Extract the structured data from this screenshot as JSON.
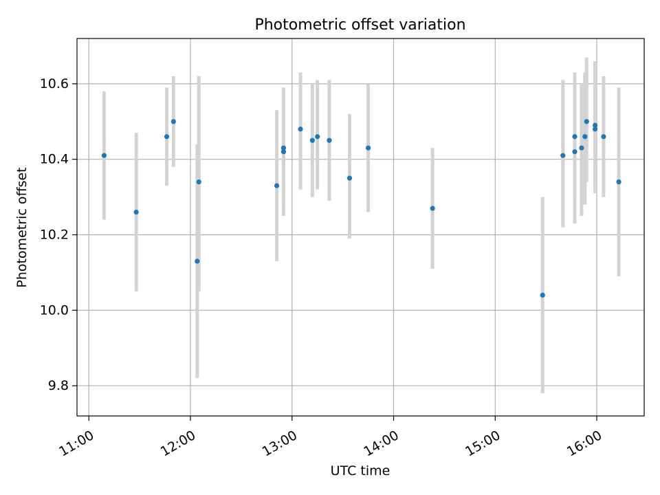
{
  "chart_data": {
    "type": "scatter",
    "title": "Photometric offset variation",
    "xlabel": "UTC time",
    "ylabel": "Photometric offset",
    "x_tick_labels": [
      "11:00",
      "12:00",
      "13:00",
      "14:00",
      "15:00",
      "16:00"
    ],
    "y_tick_labels": [
      "9.8",
      "10.0",
      "10.2",
      "10.4",
      "10.6"
    ],
    "xlim": [
      "10:53",
      "16:28"
    ],
    "ylim": [
      9.72,
      10.72
    ],
    "grid": true,
    "legend": "none",
    "colors": {
      "point": "#1f77b4",
      "errorbar": "#d3d3d3",
      "grid": "#b0b0b0"
    },
    "points": [
      {
        "x": "11:09",
        "y": 10.41,
        "err_low": 10.24,
        "err_high": 10.58
      },
      {
        "x": "11:28",
        "y": 10.26,
        "err_low": 10.05,
        "err_high": 10.47
      },
      {
        "x": "11:46",
        "y": 10.46,
        "err_low": 10.33,
        "err_high": 10.59
      },
      {
        "x": "11:50",
        "y": 10.5,
        "err_low": 10.38,
        "err_high": 10.62
      },
      {
        "x": "12:04",
        "y": 10.13,
        "err_low": 9.82,
        "err_high": 10.44
      },
      {
        "x": "12:05",
        "y": 10.34,
        "err_low": 10.05,
        "err_high": 10.62
      },
      {
        "x": "12:51",
        "y": 10.33,
        "err_low": 10.13,
        "err_high": 10.53
      },
      {
        "x": "12:55",
        "y": 10.42,
        "err_low": 10.25,
        "err_high": 10.59
      },
      {
        "x": "12:55",
        "y": 10.43,
        "err_low": 10.28,
        "err_high": 10.59
      },
      {
        "x": "13:05",
        "y": 10.48,
        "err_low": 10.32,
        "err_high": 10.63
      },
      {
        "x": "13:12",
        "y": 10.45,
        "err_low": 10.3,
        "err_high": 10.6
      },
      {
        "x": "13:15",
        "y": 10.46,
        "err_low": 10.32,
        "err_high": 10.61
      },
      {
        "x": "13:22",
        "y": 10.45,
        "err_low": 10.29,
        "err_high": 10.61
      },
      {
        "x": "13:34",
        "y": 10.35,
        "err_low": 10.19,
        "err_high": 10.52
      },
      {
        "x": "13:45",
        "y": 10.43,
        "err_low": 10.26,
        "err_high": 10.6
      },
      {
        "x": "14:23",
        "y": 10.27,
        "err_low": 10.11,
        "err_high": 10.43
      },
      {
        "x": "15:28",
        "y": 10.04,
        "err_low": 9.78,
        "err_high": 10.3
      },
      {
        "x": "15:40",
        "y": 10.41,
        "err_low": 10.22,
        "err_high": 10.61
      },
      {
        "x": "15:47",
        "y": 10.46,
        "err_low": 10.3,
        "err_high": 10.63
      },
      {
        "x": "15:47",
        "y": 10.42,
        "err_low": 10.23,
        "err_high": 10.6
      },
      {
        "x": "15:51",
        "y": 10.43,
        "err_low": 10.25,
        "err_high": 10.6
      },
      {
        "x": "15:53",
        "y": 10.46,
        "err_low": 10.28,
        "err_high": 10.63
      },
      {
        "x": "15:54",
        "y": 10.5,
        "err_low": 10.34,
        "err_high": 10.67
      },
      {
        "x": "15:59",
        "y": 10.49,
        "err_low": 10.33,
        "err_high": 10.65
      },
      {
        "x": "15:59",
        "y": 10.48,
        "err_low": 10.31,
        "err_high": 10.66
      },
      {
        "x": "16:04",
        "y": 10.46,
        "err_low": 10.3,
        "err_high": 10.62
      },
      {
        "x": "16:13",
        "y": 10.34,
        "err_low": 10.09,
        "err_high": 10.59
      }
    ]
  }
}
